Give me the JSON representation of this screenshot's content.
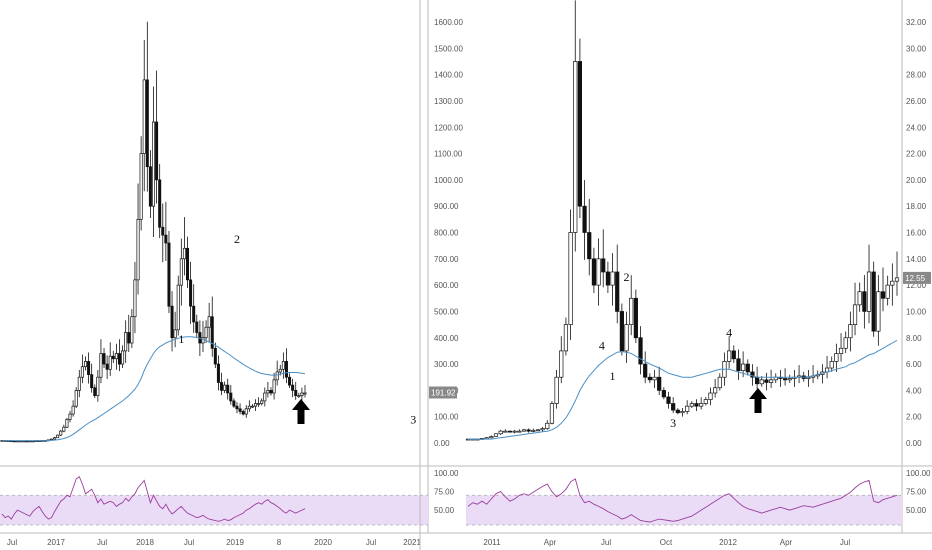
{
  "colors": {
    "candle": "#111111",
    "ma_line": "#4a90c8",
    "rsi_line": "#9c3d9c",
    "rsi_band": "#eadcf7",
    "last_price_box": "#888888",
    "grid": "#bbbbbb"
  },
  "chart_data": [
    {
      "type": "candlestick",
      "x_ticks": [
        "Jul",
        "2017",
        "Jul",
        "2018",
        "Jul",
        "2019",
        "8",
        "2020",
        "Jul",
        "2021"
      ],
      "y_ticks": [
        "0.00",
        "100.00",
        "200.00",
        "300.00",
        "400.00",
        "500.00",
        "600.00",
        "700.00",
        "800.00",
        "900.00",
        "1000.00",
        "1100.00",
        "1200.00",
        "1300.00",
        "1400.00",
        "1500.00",
        "1600.00"
      ],
      "ylim": [
        0,
        1600
      ],
      "last_price": "191.92",
      "closes": [
        10,
        9,
        9,
        8,
        7,
        8,
        8,
        8,
        7,
        8,
        8,
        9,
        9,
        10,
        10,
        12,
        15,
        20,
        30,
        45,
        60,
        90,
        110,
        140,
        200,
        250,
        290,
        310,
        260,
        210,
        180,
        250,
        340,
        300,
        280,
        330,
        320,
        340,
        300,
        350,
        420,
        380,
        480,
        620,
        850,
        1100,
        1380,
        1050,
        900,
        1220,
        1000,
        820,
        790,
        760,
        520,
        400,
        430,
        600,
        700,
        740,
        620,
        520,
        460,
        420,
        380,
        400,
        440,
        480,
        360,
        300,
        230,
        200,
        220,
        190,
        160,
        140,
        130,
        120,
        110,
        130,
        140,
        140,
        150,
        150,
        160,
        190,
        200,
        190,
        240,
        270,
        280,
        310,
        250,
        220,
        200,
        180,
        180,
        190,
        190
      ],
      "ma": [
        9,
        9,
        9,
        9,
        9,
        9,
        9,
        9,
        9,
        9,
        9,
        9,
        9,
        9,
        9,
        9,
        10,
        11,
        12,
        14,
        17,
        21,
        26,
        33,
        41,
        50,
        59,
        68,
        76,
        83,
        89,
        96,
        104,
        112,
        120,
        128,
        136,
        144,
        152,
        160,
        170,
        180,
        192,
        205,
        222,
        245,
        275,
        300,
        320,
        340,
        356,
        366,
        373,
        380,
        385,
        390,
        394,
        398,
        401,
        403,
        404,
        404,
        403,
        401,
        398,
        394,
        389,
        384,
        378,
        371,
        364,
        356,
        348,
        340,
        332,
        323,
        315,
        307,
        299,
        292,
        285,
        279,
        273,
        268,
        264,
        262,
        260,
        258,
        258,
        259,
        262,
        265,
        267,
        268,
        268,
        268,
        267,
        265,
        263
      ],
      "wave_labels": [
        {
          "label": "1",
          "x": 58,
          "y": 380
        },
        {
          "label": "2",
          "x": 76,
          "y": 760
        },
        {
          "label": "3",
          "x": 133,
          "y": 75
        },
        {
          "label": "4",
          "x": 194,
          "y": 355
        }
      ],
      "rsi": {
        "y_ticks": [
          "100.00",
          "75.00",
          "50.00"
        ],
        "ylim": [
          30,
          100
        ],
        "band": [
          30,
          70
        ],
        "values": [
          45,
          40,
          42,
          38,
          45,
          50,
          48,
          46,
          44,
          42,
          48,
          52,
          55,
          48,
          42,
          38,
          40,
          48,
          55,
          62,
          65,
          70,
          68,
          80,
          92,
          95,
          85,
          72,
          75,
          78,
          70,
          60,
          65,
          58,
          60,
          62,
          60,
          55,
          58,
          60,
          66,
          62,
          68,
          72,
          80,
          85,
          90,
          75,
          60,
          70,
          62,
          55,
          52,
          58,
          50,
          45,
          48,
          52,
          55,
          50,
          46,
          44,
          42,
          40,
          41,
          43,
          40,
          38,
          37,
          36,
          35,
          36,
          38,
          36,
          37,
          40,
          42,
          44,
          46,
          50,
          52,
          55,
          58,
          60,
          58,
          62,
          64,
          60,
          58,
          55,
          52,
          48,
          46,
          50,
          48,
          46,
          48,
          50,
          52
        ]
      }
    },
    {
      "type": "candlestick",
      "x_ticks": [
        "2011",
        "Apr",
        "Jul",
        "Oct",
        "2012",
        "Apr",
        "Jul"
      ],
      "y_ticks": [
        "0.00",
        "2.00",
        "4.00",
        "6.00",
        "8.00",
        "10.00",
        "12.00",
        "14.00",
        "16.00",
        "18.00",
        "20.00",
        "22.00",
        "24.00",
        "26.00",
        "28.00",
        "30.00",
        "32.00"
      ],
      "ylim": [
        0,
        32
      ],
      "last_price": "12.55",
      "closes": [
        0.3,
        0.3,
        0.3,
        0.35,
        0.4,
        0.5,
        0.7,
        0.9,
        0.9,
        0.85,
        0.9,
        0.9,
        1.0,
        0.9,
        0.95,
        1.0,
        1.1,
        1.5,
        3.0,
        5.0,
        7.0,
        9.0,
        16.0,
        29.0,
        18.0,
        16.0,
        14.0,
        12.0,
        14.0,
        13.0,
        12.0,
        13.0,
        10.0,
        7.0,
        9.0,
        11.0,
        8.0,
        6.0,
        5.0,
        4.8,
        5.0,
        4.0,
        3.5,
        3.0,
        2.5,
        2.3,
        2.4,
        2.8,
        3.0,
        2.8,
        3.0,
        3.3,
        3.8,
        4.2,
        5.0,
        6.2,
        7.0,
        6.4,
        5.5,
        6.0,
        5.4,
        5.0,
        4.5,
        4.8,
        4.6,
        4.8,
        5.0,
        4.9,
        4.8,
        4.9,
        5.0,
        5.1,
        4.9,
        5.0,
        5.1,
        5.2,
        5.4,
        5.7,
        6.2,
        6.8,
        7.2,
        8.0,
        9.0,
        10.5,
        11.5,
        10.0,
        13.0,
        8.5,
        11.5,
        11.0,
        12.0,
        12.3,
        12.55
      ],
      "ma": [
        0.3,
        0.3,
        0.3,
        0.3,
        0.3,
        0.3,
        0.35,
        0.4,
        0.45,
        0.5,
        0.55,
        0.6,
        0.65,
        0.7,
        0.75,
        0.8,
        0.85,
        0.9,
        1.0,
        1.2,
        1.5,
        1.9,
        2.5,
        3.2,
        4.0,
        4.6,
        5.1,
        5.5,
        5.9,
        6.2,
        6.5,
        6.7,
        6.9,
        6.95,
        6.9,
        6.8,
        6.6,
        6.4,
        6.2,
        6.0,
        5.85,
        5.7,
        5.5,
        5.3,
        5.2,
        5.1,
        5.0,
        5.0,
        5.0,
        5.1,
        5.2,
        5.3,
        5.4,
        5.5,
        5.6,
        5.6,
        5.6,
        5.5,
        5.4,
        5.3,
        5.2,
        5.1,
        5.0,
        5.0,
        5.0,
        5.0,
        5.0,
        5.0,
        5.0,
        5.0,
        5.0,
        5.0,
        5.0,
        5.05,
        5.1,
        5.2,
        5.3,
        5.4,
        5.5,
        5.6,
        5.7,
        5.8,
        6.0,
        6.1,
        6.3,
        6.5,
        6.7,
        6.8,
        7.0,
        7.2,
        7.4,
        7.6,
        7.8
      ],
      "wave_labels": [
        {
          "label": "1",
          "x": 31,
          "y": 4.8
        },
        {
          "label": "2",
          "x": 34,
          "y": 12.3
        },
        {
          "label": "3",
          "x": 44,
          "y": 1.2
        },
        {
          "label": "4",
          "x": 56,
          "y": 8.1
        }
      ],
      "rsi": {
        "y_ticks": [
          "100.00",
          "75.00",
          "50.00"
        ],
        "ylim": [
          30,
          100
        ],
        "band": [
          30,
          70
        ],
        "values": [
          55,
          60,
          58,
          62,
          58,
          65,
          72,
          75,
          68,
          62,
          65,
          70,
          72,
          70,
          74,
          78,
          82,
          85,
          75,
          68,
          72,
          78,
          88,
          92,
          70,
          60,
          62,
          58,
          55,
          52,
          48,
          45,
          42,
          38,
          40,
          44,
          40,
          36,
          35,
          34,
          36,
          38,
          37,
          36,
          35,
          36,
          38,
          40,
          42,
          46,
          50,
          54,
          58,
          62,
          66,
          70,
          72,
          66,
          60,
          55,
          52,
          50,
          48,
          46,
          48,
          50,
          52,
          54,
          52,
          50,
          52,
          54,
          56,
          55,
          54,
          56,
          58,
          60,
          62,
          64,
          66,
          70,
          74,
          80,
          85,
          88,
          90,
          62,
          60,
          64,
          66,
          68,
          70
        ]
      }
    }
  ]
}
